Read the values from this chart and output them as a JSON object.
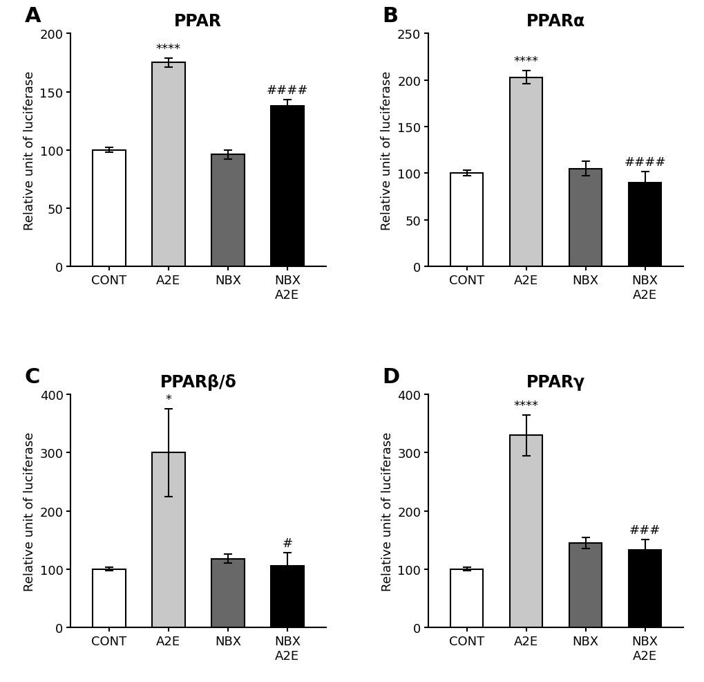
{
  "panels": [
    {
      "label": "A",
      "title": "PPAR",
      "ylim": [
        0,
        200
      ],
      "yticks": [
        0,
        50,
        100,
        150,
        200
      ],
      "bars": [
        {
          "x": "CONT",
          "value": 100,
          "sem": 2,
          "color": "#ffffff",
          "edgecolor": "#000000",
          "sig_above": ""
        },
        {
          "x": "A2E",
          "value": 175,
          "sem": 4,
          "color": "#c8c8c8",
          "edgecolor": "#000000",
          "sig_above": "****"
        },
        {
          "x": "NBX",
          "value": 96,
          "sem": 4,
          "color": "#686868",
          "edgecolor": "#000000",
          "sig_above": ""
        },
        {
          "x": "NBX\nA2E",
          "value": 138,
          "sem": 5,
          "color": "#000000",
          "edgecolor": "#000000",
          "sig_above": "####"
        }
      ]
    },
    {
      "label": "B",
      "title": "PPARα",
      "ylim": [
        0,
        250
      ],
      "yticks": [
        0,
        50,
        100,
        150,
        200,
        250
      ],
      "bars": [
        {
          "x": "CONT",
          "value": 100,
          "sem": 3,
          "color": "#ffffff",
          "edgecolor": "#000000",
          "sig_above": ""
        },
        {
          "x": "A2E",
          "value": 203,
          "sem": 7,
          "color": "#c8c8c8",
          "edgecolor": "#000000",
          "sig_above": "****"
        },
        {
          "x": "NBX",
          "value": 105,
          "sem": 8,
          "color": "#686868",
          "edgecolor": "#000000",
          "sig_above": ""
        },
        {
          "x": "NBX\nA2E",
          "value": 90,
          "sem": 12,
          "color": "#000000",
          "edgecolor": "#000000",
          "sig_above": "####"
        }
      ]
    },
    {
      "label": "C",
      "title": "PPARβ/δ",
      "ylim": [
        0,
        400
      ],
      "yticks": [
        0,
        100,
        200,
        300,
        400
      ],
      "bars": [
        {
          "x": "CONT",
          "value": 100,
          "sem": 3,
          "color": "#ffffff",
          "edgecolor": "#000000",
          "sig_above": ""
        },
        {
          "x": "A2E",
          "value": 300,
          "sem": 75,
          "color": "#c8c8c8",
          "edgecolor": "#000000",
          "sig_above": "*"
        },
        {
          "x": "NBX",
          "value": 118,
          "sem": 8,
          "color": "#686868",
          "edgecolor": "#000000",
          "sig_above": ""
        },
        {
          "x": "NBX\nA2E",
          "value": 106,
          "sem": 22,
          "color": "#000000",
          "edgecolor": "#000000",
          "sig_above": "#"
        }
      ]
    },
    {
      "label": "D",
      "title": "PPARγ",
      "ylim": [
        0,
        400
      ],
      "yticks": [
        0,
        100,
        200,
        300,
        400
      ],
      "bars": [
        {
          "x": "CONT",
          "value": 100,
          "sem": 3,
          "color": "#ffffff",
          "edgecolor": "#000000",
          "sig_above": ""
        },
        {
          "x": "A2E",
          "value": 330,
          "sem": 35,
          "color": "#c8c8c8",
          "edgecolor": "#000000",
          "sig_above": "****"
        },
        {
          "x": "NBX",
          "value": 145,
          "sem": 10,
          "color": "#686868",
          "edgecolor": "#000000",
          "sig_above": ""
        },
        {
          "x": "NBX\nA2E",
          "value": 133,
          "sem": 18,
          "color": "#000000",
          "edgecolor": "#000000",
          "sig_above": "###"
        }
      ]
    }
  ],
  "ylabel": "Relative unit of luciferase",
  "bar_width": 0.55,
  "background_color": "#ffffff",
  "title_fontsize": 17,
  "label_fontsize": 13,
  "tick_fontsize": 13,
  "sig_fontsize": 13,
  "panel_label_fontsize": 22
}
